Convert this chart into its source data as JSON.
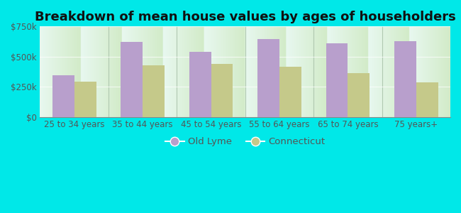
{
  "title": "Breakdown of mean house values by ages of householders",
  "categories": [
    "25 to 34 years",
    "35 to 44 years",
    "45 to 54 years",
    "55 to 64 years",
    "65 to 74 years",
    "75 years+"
  ],
  "old_lyme": [
    345000,
    620000,
    540000,
    645000,
    610000,
    630000
  ],
  "connecticut": [
    295000,
    430000,
    440000,
    415000,
    365000,
    285000
  ],
  "old_lyme_color": "#b89fcc",
  "connecticut_color": "#c5c98a",
  "background_outer": "#00e8e8",
  "background_inner_bottom": "#d8edcc",
  "background_inner_top": "#e8f8f0",
  "ylim": [
    0,
    750000
  ],
  "yticks": [
    0,
    250000,
    500000,
    750000
  ],
  "ytick_labels": [
    "$0",
    "$250k",
    "$500k",
    "$750k"
  ],
  "legend_old_lyme": "Old Lyme",
  "legend_connecticut": "Connecticut",
  "title_fontsize": 13,
  "axis_fontsize": 8.5,
  "legend_fontsize": 9.5,
  "bar_width": 0.32,
  "separator_color": "#b0c8b0",
  "tick_color": "#555555"
}
